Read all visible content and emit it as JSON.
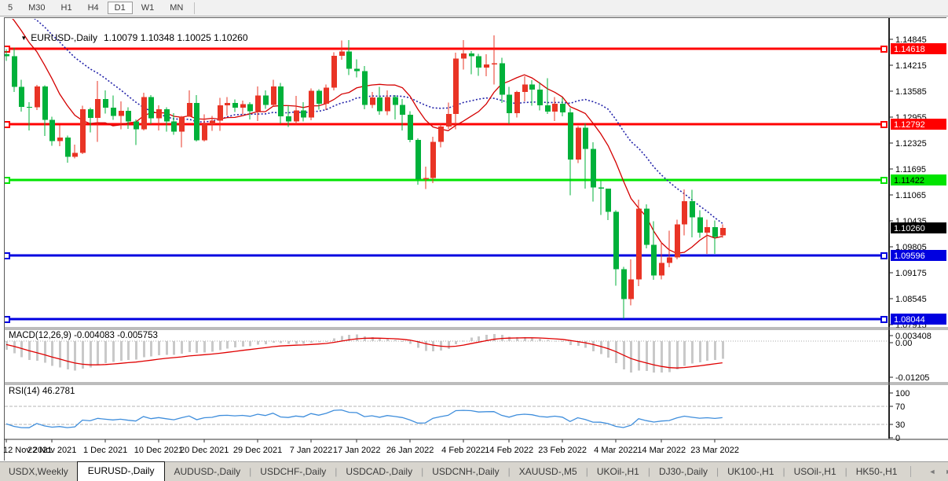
{
  "toolbar": {
    "timeframes": [
      "5",
      "M30",
      "H1",
      "H4",
      "D1",
      "W1",
      "MN"
    ],
    "active": "D1"
  },
  "chart_header": {
    "symbol": "EURUSD-,Daily",
    "open": "1.10079",
    "high": "1.10348",
    "low": "1.10025",
    "close": "1.10260"
  },
  "indicators": {
    "macd": {
      "label": "MACD(12,26,9)",
      "main_value": "-0.004083",
      "signal_value": "-0.005753",
      "axis_max": "0.003408",
      "axis_zero": "0.00",
      "axis_min": "-0.01205"
    },
    "rsi": {
      "label": "RSI(14)",
      "value": "46.2781",
      "axis": [
        "100",
        "70",
        "30",
        "0"
      ]
    }
  },
  "bottom_tabs": {
    "active_index": 1,
    "tabs": [
      "USDX,Weekly",
      "EURUSD-,Daily",
      "AUDUSD-,Daily",
      "USDCHF-,Daily",
      "USDCAD-,Daily",
      "USDCNH-,Daily",
      "XAUUSD-,M5",
      "UKOil-,H1",
      "DJ30-,Daily",
      "UK100-,H1",
      "USOil-,H1",
      "HK50-,H1"
    ],
    "scroll_left": "◄",
    "scroll_right": "►"
  },
  "chart_data": {
    "type": "candlestick",
    "symbol": "EURUSD-",
    "timeframe": "Daily",
    "title": "EURUSD-,Daily  1.10079 1.10348 1.10025 1.10260",
    "candle_colors": {
      "up": "#e93425",
      "down": "#00b13a",
      "note": "red = bullish, green = bearish"
    },
    "y_axis_ticks": [
      "1.14845",
      "1.14215",
      "1.13585",
      "1.12955",
      "1.12325",
      "1.11695",
      "1.11065",
      "1.10435",
      "1.09805",
      "1.09175",
      "1.08545",
      "1.07915"
    ],
    "y_axis_top_price": 1.14845,
    "y_axis_step": 0.0063,
    "x_axis_labels": [
      {
        "label": "12 Nov 2021",
        "index": 0
      },
      {
        "label": "22 Nov 2021",
        "index": 6
      },
      {
        "label": "1 Dec 2021",
        "index": 13
      },
      {
        "label": "10 Dec 2021",
        "index": 20
      },
      {
        "label": "20 Dec 2021",
        "index": 26
      },
      {
        "label": "29 Dec 2021",
        "index": 33
      },
      {
        "label": "7 Jan 2022",
        "index": 40
      },
      {
        "label": "17 Jan 2022",
        "index": 46
      },
      {
        "label": "26 Jan 2022",
        "index": 53
      },
      {
        "label": "4 Feb 2022",
        "index": 60
      },
      {
        "label": "14 Feb 2022",
        "index": 66
      },
      {
        "label": "23 Feb 2022",
        "index": 73
      },
      {
        "label": "4 Mar 2022",
        "index": 80
      },
      {
        "label": "14 Mar 2022",
        "index": 86
      },
      {
        "label": "23 Mar 2022",
        "index": 93
      }
    ],
    "horizontal_lines": [
      {
        "price": 1.14618,
        "label": "1.14618",
        "color": "#ff0000",
        "label_fg": "#ffffff"
      },
      {
        "price": 1.12792,
        "label": "1.12792",
        "color": "#ff0000",
        "label_fg": "#ffffff"
      },
      {
        "price": 1.11422,
        "label": "1.11422",
        "color": "#00e400",
        "label_fg": "#000000"
      },
      {
        "price": 1.09596,
        "label": "1.09596",
        "color": "#0000e0",
        "label_fg": "#ffffff"
      },
      {
        "price": 1.08044,
        "label": "1.08044",
        "color": "#0000e0",
        "label_fg": "#ffffff"
      }
    ],
    "current_price": {
      "price": 1.1026,
      "label": "1.10260",
      "bg": "#000000",
      "fg": "#ffffff"
    },
    "ma_fast": {
      "period": 10,
      "color": "#d40000",
      "style": "solid"
    },
    "ma_slow": {
      "period": 21,
      "color": "#2424aa",
      "style": "dotted"
    },
    "seed_closes": [
      1.1598,
      1.16,
      1.161,
      1.1632,
      1.1653,
      1.1625,
      1.1646,
      1.1613,
      1.1601,
      1.1598,
      1.1606,
      1.1581,
      1.1561,
      1.158,
      1.1601,
      1.1592,
      1.1605,
      1.1578,
      1.1615,
      1.1478,
      1.1448
    ],
    "candles": [
      [
        1.1448,
        1.1461,
        1.1432,
        1.1443
      ],
      [
        1.1443,
        1.1464,
        1.1357,
        1.1369
      ],
      [
        1.1369,
        1.1386,
        1.1309,
        1.132
      ],
      [
        1.132,
        1.1332,
        1.1263,
        1.1319
      ],
      [
        1.1319,
        1.1374,
        1.1313,
        1.137
      ],
      [
        1.137,
        1.1373,
        1.125,
        1.1289
      ],
      [
        1.1289,
        1.1296,
        1.1226,
        1.1237
      ],
      [
        1.1237,
        1.1275,
        1.1225,
        1.1246
      ],
      [
        1.1246,
        1.1251,
        1.1185,
        1.1199
      ],
      [
        1.1199,
        1.1229,
        1.1195,
        1.1209
      ],
      [
        1.1209,
        1.1323,
        1.1206,
        1.1315
      ],
      [
        1.1315,
        1.1318,
        1.1258,
        1.1294
      ],
      [
        1.1294,
        1.1383,
        1.1235,
        1.1339
      ],
      [
        1.1339,
        1.136,
        1.1304,
        1.1318
      ],
      [
        1.1318,
        1.1348,
        1.1289,
        1.1298
      ],
      [
        1.1298,
        1.1334,
        1.1266,
        1.1311
      ],
      [
        1.1311,
        1.1319,
        1.1267,
        1.1285
      ],
      [
        1.1285,
        1.129,
        1.1228,
        1.1266
      ],
      [
        1.1266,
        1.1355,
        1.1263,
        1.1344
      ],
      [
        1.1344,
        1.1349,
        1.1278,
        1.1293
      ],
      [
        1.1293,
        1.1324,
        1.1263,
        1.1315
      ],
      [
        1.1315,
        1.1319,
        1.126,
        1.1285
      ],
      [
        1.1285,
        1.1305,
        1.1253,
        1.126
      ],
      [
        1.126,
        1.1298,
        1.1222,
        1.1296
      ],
      [
        1.1296,
        1.136,
        1.1296,
        1.133
      ],
      [
        1.133,
        1.1349,
        1.1236,
        1.1239
      ],
      [
        1.1239,
        1.1302,
        1.1236,
        1.1278
      ],
      [
        1.1278,
        1.1298,
        1.1262,
        1.1287
      ],
      [
        1.1287,
        1.1342,
        1.1262,
        1.1324
      ],
      [
        1.1324,
        1.1344,
        1.1299,
        1.133
      ],
      [
        1.133,
        1.1338,
        1.1308,
        1.1318
      ],
      [
        1.1318,
        1.1336,
        1.1302,
        1.1327
      ],
      [
        1.1327,
        1.1332,
        1.129,
        1.131
      ],
      [
        1.131,
        1.137,
        1.1286,
        1.1348
      ],
      [
        1.1348,
        1.136,
        1.1316,
        1.1325
      ],
      [
        1.1325,
        1.1386,
        1.132,
        1.137
      ],
      [
        1.137,
        1.1379,
        1.1279,
        1.1297
      ],
      [
        1.1297,
        1.1323,
        1.1272,
        1.1285
      ],
      [
        1.1285,
        1.1347,
        1.1277,
        1.1312
      ],
      [
        1.1312,
        1.1332,
        1.1285,
        1.1295
      ],
      [
        1.1295,
        1.1365,
        1.1288,
        1.1359
      ],
      [
        1.1359,
        1.1363,
        1.1314,
        1.1328
      ],
      [
        1.1328,
        1.1375,
        1.1313,
        1.1367
      ],
      [
        1.1367,
        1.1453,
        1.136,
        1.1444
      ],
      [
        1.1444,
        1.1482,
        1.1435,
        1.1455
      ],
      [
        1.1455,
        1.1483,
        1.1398,
        1.1413
      ],
      [
        1.1413,
        1.1436,
        1.1392,
        1.1407
      ],
      [
        1.1407,
        1.142,
        1.1315,
        1.1325
      ],
      [
        1.1325,
        1.1357,
        1.1317,
        1.1343
      ],
      [
        1.1343,
        1.1369,
        1.1301,
        1.131
      ],
      [
        1.131,
        1.136,
        1.13,
        1.1344
      ],
      [
        1.1344,
        1.1349,
        1.129,
        1.1325
      ],
      [
        1.1325,
        1.1339,
        1.1263,
        1.1301
      ],
      [
        1.1301,
        1.131,
        1.1234,
        1.124
      ],
      [
        1.124,
        1.1244,
        1.1131,
        1.1145
      ],
      [
        1.1145,
        1.1175,
        1.1121,
        1.1148
      ],
      [
        1.1148,
        1.1248,
        1.1135,
        1.1235
      ],
      [
        1.1235,
        1.1279,
        1.1222,
        1.1273
      ],
      [
        1.1273,
        1.1331,
        1.1267,
        1.1303
      ],
      [
        1.1303,
        1.1452,
        1.1266,
        1.1438
      ],
      [
        1.1438,
        1.1483,
        1.1411,
        1.145
      ],
      [
        1.145,
        1.1456,
        1.14,
        1.1443
      ],
      [
        1.1443,
        1.1449,
        1.1396,
        1.1416
      ],
      [
        1.1416,
        1.1448,
        1.1395,
        1.1423
      ],
      [
        1.1423,
        1.1494,
        1.1375,
        1.1426
      ],
      [
        1.1426,
        1.144,
        1.133,
        1.135
      ],
      [
        1.135,
        1.1369,
        1.1278,
        1.1305
      ],
      [
        1.1305,
        1.1359,
        1.1295,
        1.1357
      ],
      [
        1.1357,
        1.1395,
        1.1334,
        1.1375
      ],
      [
        1.1375,
        1.1385,
        1.1323,
        1.1362
      ],
      [
        1.1362,
        1.138,
        1.1312,
        1.1324
      ],
      [
        1.1324,
        1.139,
        1.1303,
        1.1309
      ],
      [
        1.1309,
        1.1344,
        1.1286,
        1.1328
      ],
      [
        1.1328,
        1.1343,
        1.1297,
        1.1307
      ],
      [
        1.1307,
        1.1317,
        1.1106,
        1.1192
      ],
      [
        1.1192,
        1.1274,
        1.1184,
        1.127
      ],
      [
        1.127,
        1.128,
        1.1122,
        1.1218
      ],
      [
        1.1218,
        1.1234,
        1.109,
        1.1125
      ],
      [
        1.1125,
        1.114,
        1.1058,
        1.1122
      ],
      [
        1.1122,
        1.1122,
        1.1045,
        1.1065
      ],
      [
        1.1065,
        1.1069,
        1.0886,
        1.0926
      ],
      [
        1.0926,
        1.0932,
        1.0806,
        1.0854
      ],
      [
        1.0854,
        1.095,
        1.0838,
        1.0901
      ],
      [
        1.0901,
        1.1095,
        1.0885,
        1.1073
      ],
      [
        1.1073,
        1.1084,
        1.0977,
        1.0985
      ],
      [
        1.0985,
        1.1043,
        1.09,
        1.0911
      ],
      [
        1.0911,
        1.0992,
        1.0901,
        1.0941
      ],
      [
        1.0941,
        1.102,
        1.0931,
        1.0955
      ],
      [
        1.0955,
        1.1046,
        1.095,
        1.1035
      ],
      [
        1.1035,
        1.112,
        1.1008,
        1.1091
      ],
      [
        1.1091,
        1.1119,
        1.1003,
        1.1052
      ],
      [
        1.1052,
        1.1069,
        1.1002,
        1.1015
      ],
      [
        1.1015,
        1.1046,
        1.0963,
        1.1028
      ],
      [
        1.1028,
        1.1044,
        1.0963,
        1.1004
      ],
      [
        1.10079,
        1.10348,
        1.10025,
        1.1026
      ]
    ],
    "macd": {
      "fast": 12,
      "slow": 26,
      "signal": 9,
      "histogram_color": "#c9c9c9",
      "signal_color": "#e00000"
    },
    "rsi": {
      "period": 14,
      "color": "#3f8edc",
      "levels": [
        70,
        30
      ]
    }
  }
}
